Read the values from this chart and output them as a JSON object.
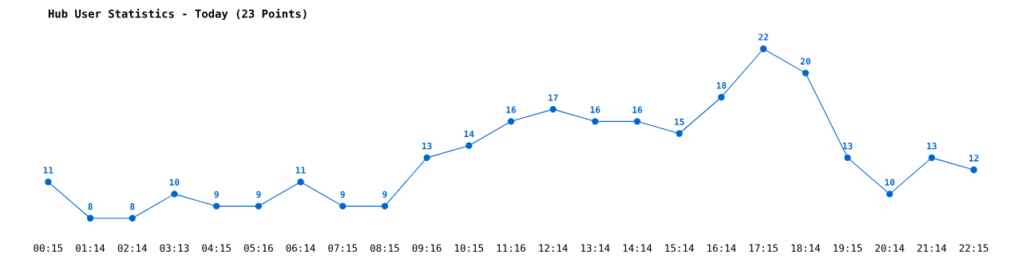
{
  "chart_data": {
    "type": "line",
    "title": "Hub User Statistics - Today (23 Points)",
    "categories": [
      "00:15",
      "01:14",
      "02:14",
      "03:13",
      "04:15",
      "05:16",
      "06:14",
      "07:15",
      "08:15",
      "09:16",
      "10:15",
      "11:16",
      "12:14",
      "13:14",
      "14:14",
      "15:14",
      "16:14",
      "17:15",
      "18:14",
      "19:15",
      "20:14",
      "21:14",
      "22:15"
    ],
    "series": [
      {
        "color": "#0066cc",
        "values": [
          11,
          8,
          8,
          10,
          9,
          9,
          11,
          9,
          9,
          13,
          14,
          16,
          17,
          16,
          16,
          15,
          18,
          22,
          20,
          13,
          10,
          13,
          12
        ]
      }
    ],
    "tick_labels": "x",
    "data_labels": true,
    "marker": "circle",
    "line_style": "solid"
  }
}
